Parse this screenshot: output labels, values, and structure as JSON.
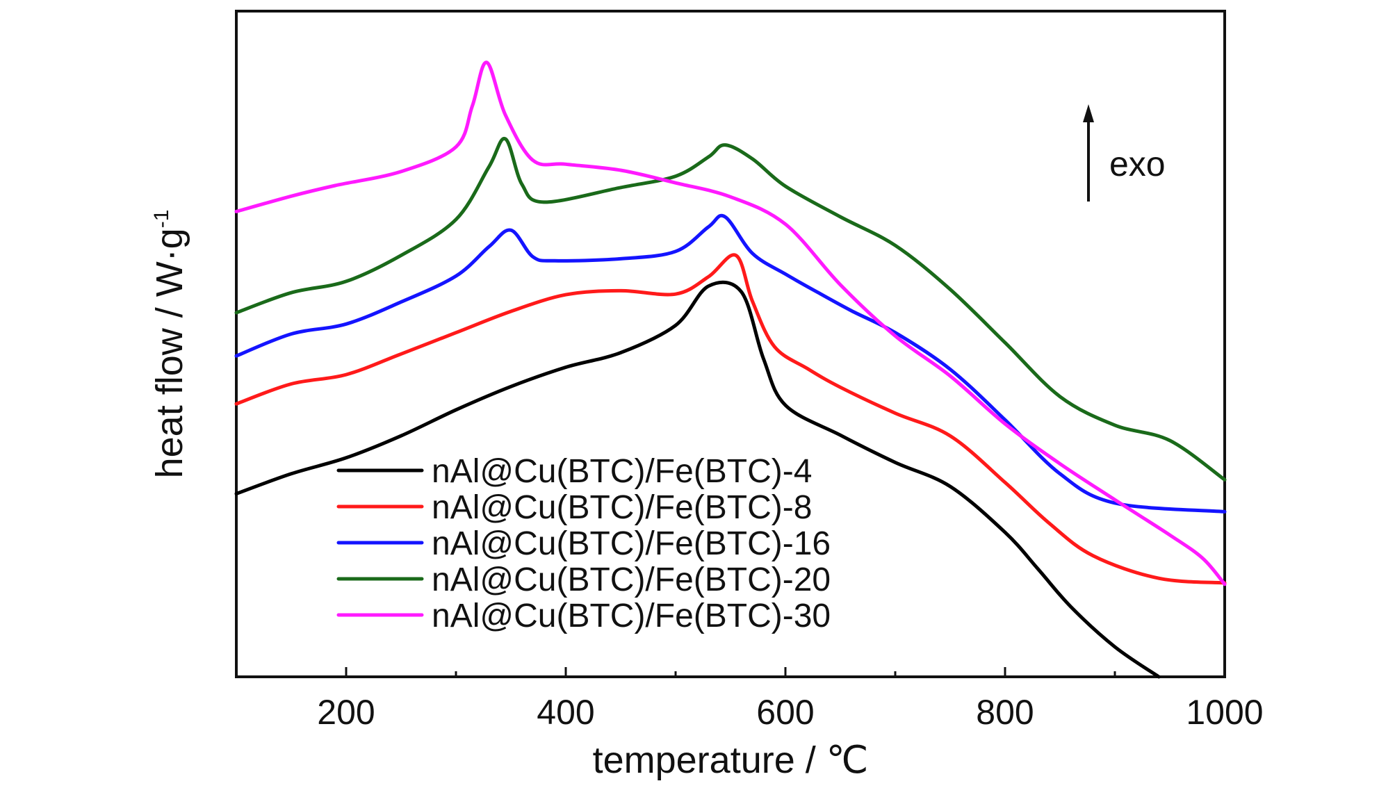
{
  "chart_data": {
    "type": "line",
    "title": "",
    "xlabel": "temperature / ℃",
    "ylabel": "heat flow / W·g",
    "ylabel_superscript": "-1",
    "xlim": [
      100,
      1000
    ],
    "ylim": [
      0,
      100
    ],
    "y_ticks_shown": false,
    "x_ticks": [
      200,
      400,
      600,
      800,
      1000
    ],
    "x_tick_labels": [
      "200",
      "400",
      "600",
      "800",
      "1000"
    ],
    "x_minor_ticks": [
      300,
      500,
      700,
      900
    ],
    "grid": false,
    "legend_position": "bottom-left",
    "annotation": {
      "text": "exo",
      "arrow": "up"
    },
    "series": [
      {
        "name": "nAl@Cu(BTC)/Fe(BTC)-4",
        "color": "#000000",
        "points": [
          [
            100,
            27.5
          ],
          [
            150,
            30.5
          ],
          [
            200,
            32.9
          ],
          [
            250,
            36.2
          ],
          [
            300,
            40.1
          ],
          [
            350,
            43.6
          ],
          [
            400,
            46.5
          ],
          [
            450,
            48.7
          ],
          [
            500,
            52.8
          ],
          [
            530,
            58.7
          ],
          [
            560,
            57.8
          ],
          [
            580,
            47.8
          ],
          [
            600,
            40.8
          ],
          [
            650,
            36.3
          ],
          [
            700,
            32.2
          ],
          [
            750,
            28.6
          ],
          [
            800,
            21.7
          ],
          [
            830,
            16.2
          ],
          [
            860,
            10.5
          ],
          [
            900,
            4.5
          ],
          [
            940,
            0
          ]
        ]
      },
      {
        "name": "nAl@Cu(BTC)/Fe(BTC)-8",
        "color": "#ff1a1a",
        "points": [
          [
            100,
            41.0
          ],
          [
            150,
            44.0
          ],
          [
            200,
            45.4
          ],
          [
            250,
            48.5
          ],
          [
            300,
            51.7
          ],
          [
            350,
            54.9
          ],
          [
            400,
            57.4
          ],
          [
            450,
            58.0
          ],
          [
            500,
            57.5
          ],
          [
            530,
            60.1
          ],
          [
            555,
            63.3
          ],
          [
            570,
            56.4
          ],
          [
            590,
            49.6
          ],
          [
            620,
            46.3
          ],
          [
            650,
            43.5
          ],
          [
            700,
            39.6
          ],
          [
            750,
            36.2
          ],
          [
            800,
            29.2
          ],
          [
            840,
            23.1
          ],
          [
            880,
            18.2
          ],
          [
            940,
            14.8
          ],
          [
            1000,
            14.1
          ]
        ]
      },
      {
        "name": "nAl@Cu(BTC)/Fe(BTC)-16",
        "color": "#1414ff",
        "points": [
          [
            100,
            48.2
          ],
          [
            150,
            51.5
          ],
          [
            200,
            53.0
          ],
          [
            250,
            56.3
          ],
          [
            300,
            60.2
          ],
          [
            330,
            64.6
          ],
          [
            350,
            67.1
          ],
          [
            370,
            63.1
          ],
          [
            390,
            62.5
          ],
          [
            450,
            62.8
          ],
          [
            500,
            63.9
          ],
          [
            530,
            67.6
          ],
          [
            545,
            69.1
          ],
          [
            570,
            63.6
          ],
          [
            600,
            60.5
          ],
          [
            630,
            57.7
          ],
          [
            660,
            55.0
          ],
          [
            700,
            51.7
          ],
          [
            750,
            46.2
          ],
          [
            800,
            38.6
          ],
          [
            850,
            30.5
          ],
          [
            900,
            26.1
          ],
          [
            1000,
            24.8
          ]
        ]
      },
      {
        "name": "nAl@Cu(BTC)/Fe(BTC)-20",
        "color": "#1a6a1a",
        "points": [
          [
            100,
            54.7
          ],
          [
            150,
            57.7
          ],
          [
            200,
            59.4
          ],
          [
            250,
            63.3
          ],
          [
            300,
            68.7
          ],
          [
            330,
            76.6
          ],
          [
            345,
            80.8
          ],
          [
            360,
            74.0
          ],
          [
            380,
            71.3
          ],
          [
            450,
            73.5
          ],
          [
            500,
            75.2
          ],
          [
            530,
            78.1
          ],
          [
            545,
            79.9
          ],
          [
            570,
            77.8
          ],
          [
            600,
            73.7
          ],
          [
            650,
            69.1
          ],
          [
            700,
            64.8
          ],
          [
            750,
            58.2
          ],
          [
            800,
            50.2
          ],
          [
            850,
            42.1
          ],
          [
            900,
            37.8
          ],
          [
            950,
            35.5
          ],
          [
            1000,
            29.6
          ]
        ]
      },
      {
        "name": "nAl@Cu(BTC)/Fe(BTC)-30",
        "color": "#ff1aff",
        "points": [
          [
            100,
            69.9
          ],
          [
            150,
            72.2
          ],
          [
            190,
            73.8
          ],
          [
            250,
            75.9
          ],
          [
            300,
            79.6
          ],
          [
            315,
            85.8
          ],
          [
            328,
            92.3
          ],
          [
            345,
            84.4
          ],
          [
            370,
            77.6
          ],
          [
            400,
            77.0
          ],
          [
            450,
            76.1
          ],
          [
            500,
            74.2
          ],
          [
            550,
            72.1
          ],
          [
            600,
            68.0
          ],
          [
            650,
            58.9
          ],
          [
            700,
            51.2
          ],
          [
            750,
            45.2
          ],
          [
            800,
            38.0
          ],
          [
            850,
            32.0
          ],
          [
            900,
            26.6
          ],
          [
            950,
            21.3
          ],
          [
            980,
            17.8
          ],
          [
            1000,
            13.9
          ]
        ]
      }
    ]
  }
}
